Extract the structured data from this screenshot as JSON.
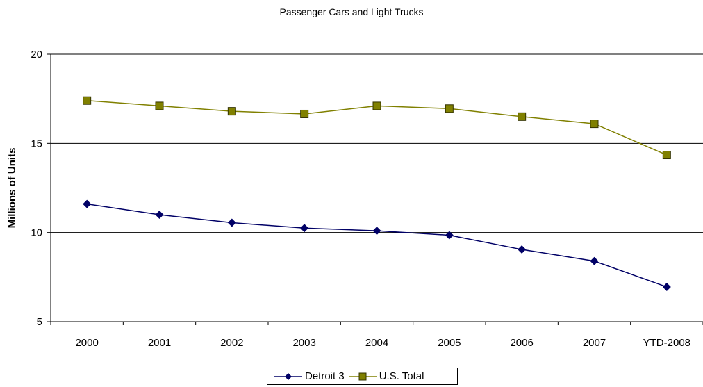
{
  "chart_data": {
    "type": "line",
    "title": "Passenger Cars and Light Trucks",
    "xlabel": "",
    "ylabel": "Millions of Units",
    "categories": [
      "2000",
      "2001",
      "2002",
      "2003",
      "2004",
      "2005",
      "2006",
      "2007",
      "YTD-2008"
    ],
    "ylim": [
      5,
      20
    ],
    "yticks": [
      5,
      10,
      15,
      20
    ],
    "grid": true,
    "legend_position": "bottom",
    "series": [
      {
        "name": "Detroit 3",
        "color": "#000066",
        "marker": "diamond",
        "values": [
          11.6,
          11.0,
          10.55,
          10.25,
          10.1,
          9.85,
          9.05,
          8.4,
          6.95
        ]
      },
      {
        "name": "U.S. Total",
        "color": "#808000",
        "marker": "square",
        "values": [
          17.4,
          17.1,
          16.8,
          16.65,
          17.1,
          16.95,
          16.5,
          16.1,
          14.35
        ]
      }
    ]
  }
}
